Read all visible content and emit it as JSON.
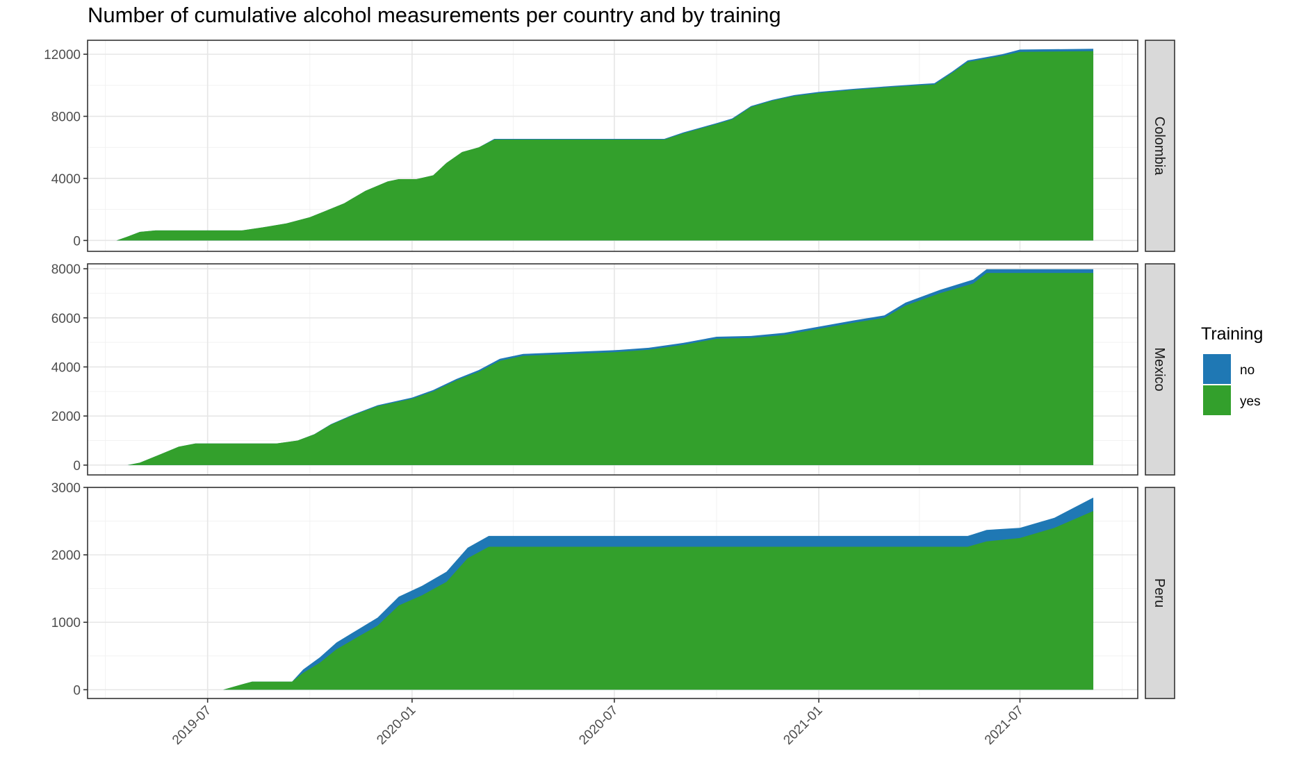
{
  "chart_data": {
    "type": "area",
    "stacked": true,
    "title": "Number of cumulative alcohol measurements per country and by training",
    "xlabel": "",
    "ylabel": "",
    "x_ticks": [
      "2019-07",
      "2020-01",
      "2020-07",
      "2021-01",
      "2021-07"
    ],
    "x_range": [
      "2019-03-15",
      "2021-10-15"
    ],
    "grid": true,
    "legend": {
      "title": "Training",
      "position": "right",
      "entries": [
        {
          "label": "no",
          "color": "#1F78B4"
        },
        {
          "label": "yes",
          "color": "#33A02C"
        }
      ]
    },
    "panels": [
      {
        "name": "Colombia",
        "ylim": [
          -700,
          12900
        ],
        "y_ticks": [
          0,
          4000,
          8000,
          12000
        ],
        "x": [
          "2019-04-10",
          "2019-04-20",
          "2019-05-01",
          "2019-05-15",
          "2019-08-01",
          "2019-08-20",
          "2019-09-10",
          "2019-10-01",
          "2019-10-15",
          "2019-11-01",
          "2019-11-20",
          "2019-12-10",
          "2019-12-20",
          "2020-01-05",
          "2020-01-20",
          "2020-02-01",
          "2020-02-15",
          "2020-03-01",
          "2020-03-15",
          "2020-08-15",
          "2020-09-01",
          "2020-10-01",
          "2020-10-15",
          "2020-11-01",
          "2020-11-20",
          "2020-12-10",
          "2021-01-01",
          "2021-02-01",
          "2021-03-01",
          "2021-04-01",
          "2021-04-15",
          "2021-05-01",
          "2021-05-15",
          "2021-06-15",
          "2021-07-01",
          "2021-09-05"
        ],
        "series": [
          {
            "name": "no",
            "values": [
              0,
              0,
              0,
              0,
              0,
              0,
              0,
              0,
              0,
              0,
              0,
              0,
              0,
              0,
              0,
              0,
              0,
              0,
              50,
              50,
              60,
              60,
              60,
              60,
              60,
              70,
              70,
              70,
              70,
              70,
              80,
              80,
              100,
              100,
              150,
              150
            ]
          },
          {
            "name": "yes",
            "values": [
              0,
              250,
              550,
              650,
              650,
              850,
              1100,
              1500,
              1900,
              2400,
              3200,
              3800,
              3950,
              3950,
              4200,
              5000,
              5700,
              6000,
              6500,
              6500,
              6900,
              7500,
              7800,
              8600,
              9000,
              9300,
              9500,
              9700,
              9850,
              10000,
              10050,
              10800,
              11500,
              11900,
              12150,
              12200
            ]
          }
        ]
      },
      {
        "name": "Mexico",
        "ylim": [
          -400,
          8200
        ],
        "y_ticks": [
          0,
          2000,
          4000,
          6000,
          8000
        ],
        "x": [
          "2019-04-20",
          "2019-05-01",
          "2019-05-20",
          "2019-06-05",
          "2019-06-20",
          "2019-09-01",
          "2019-09-20",
          "2019-10-05",
          "2019-10-20",
          "2019-11-10",
          "2019-12-01",
          "2020-01-01",
          "2020-01-20",
          "2020-02-10",
          "2020-03-01",
          "2020-03-20",
          "2020-04-10",
          "2020-07-01",
          "2020-08-01",
          "2020-09-01",
          "2020-10-01",
          "2020-11-01",
          "2020-12-01",
          "2021-01-01",
          "2021-02-01",
          "2021-03-01",
          "2021-03-20",
          "2021-04-20",
          "2021-05-20",
          "2021-06-01",
          "2021-09-05"
        ],
        "series": [
          {
            "name": "no",
            "values": [
              0,
              0,
              0,
              0,
              0,
              0,
              0,
              10,
              20,
              30,
              40,
              50,
              60,
              60,
              70,
              80,
              80,
              80,
              80,
              80,
              80,
              80,
              90,
              90,
              90,
              100,
              120,
              140,
              160,
              150,
              150
            ]
          },
          {
            "name": "yes",
            "values": [
              0,
              100,
              450,
              750,
              880,
              880,
              1000,
              1250,
              1650,
              2050,
              2400,
              2700,
              3000,
              3450,
              3800,
              4250,
              4450,
              4600,
              4700,
              4900,
              5150,
              5180,
              5300,
              5550,
              5800,
              6000,
              6500,
              7000,
              7400,
              7830,
              7830
            ]
          }
        ]
      },
      {
        "name": "Peru",
        "ylim": [
          -130,
          3000
        ],
        "y_ticks": [
          0,
          1000,
          2000,
          3000
        ],
        "x": [
          "2019-07-15",
          "2019-08-01",
          "2019-08-10",
          "2019-09-15",
          "2019-09-25",
          "2019-10-10",
          "2019-10-25",
          "2019-11-15",
          "2019-12-01",
          "2019-12-20",
          "2020-01-10",
          "2020-02-01",
          "2020-02-20",
          "2020-03-10",
          "2020-03-15",
          "2021-05-15",
          "2021-06-01",
          "2021-07-01",
          "2021-08-01",
          "2021-09-05"
        ],
        "series": [
          {
            "name": "no",
            "values": [
              0,
              0,
              0,
              0,
              50,
              80,
              100,
              110,
              120,
              130,
              140,
              150,
              155,
              160,
              160,
              160,
              170,
              150,
              150,
              200
            ]
          },
          {
            "name": "yes",
            "values": [
              0,
              80,
              120,
              120,
              250,
              400,
              600,
              800,
              950,
              1250,
              1400,
              1600,
              1950,
              2120,
              2120,
              2120,
              2200,
              2250,
              2400,
              2650
            ]
          }
        ]
      }
    ]
  }
}
